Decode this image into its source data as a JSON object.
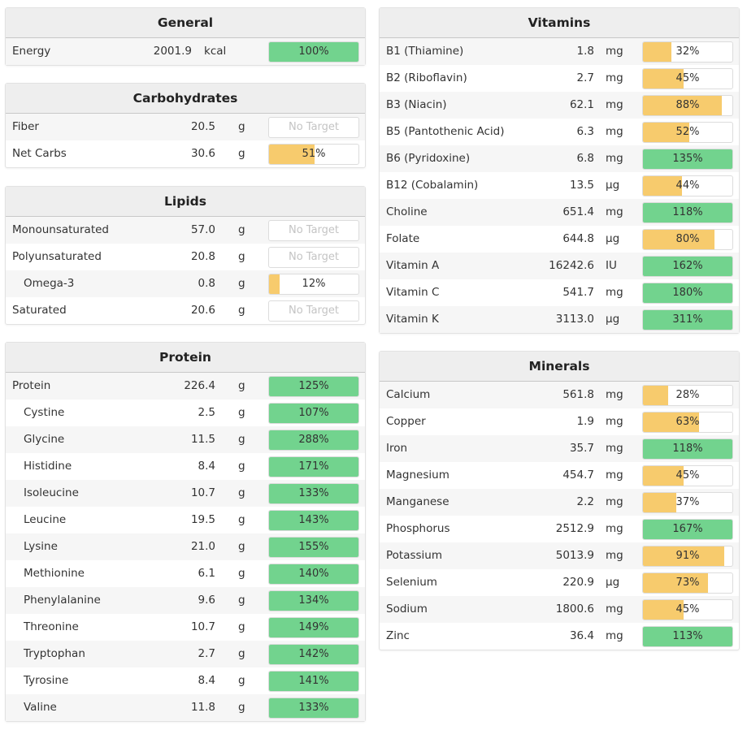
{
  "colors": {
    "met": "#72d38e",
    "partial": "#f7cb6d"
  },
  "panels": [
    {
      "id": "general",
      "title": "General",
      "side": "left",
      "top": 9,
      "rows": [
        {
          "name": "Energy",
          "value": "2001.9",
          "unit": "kcal",
          "pct": 100,
          "label": "100%"
        }
      ]
    },
    {
      "id": "carbohydrates",
      "title": "Carbohydrates",
      "side": "left",
      "top": 102,
      "rows": [
        {
          "name": "Fiber",
          "value": "20.5",
          "unit": "g",
          "pct": null,
          "label": "No Target"
        },
        {
          "name": "Net Carbs",
          "value": "30.6",
          "unit": "g",
          "pct": 51,
          "label": "51%"
        }
      ]
    },
    {
      "id": "lipids",
      "title": "Lipids",
      "side": "left",
      "top": 229,
      "rows": [
        {
          "name": "Monounsaturated",
          "value": "57.0",
          "unit": "g",
          "pct": null,
          "label": "No Target"
        },
        {
          "name": "Polyunsaturated",
          "value": "20.8",
          "unit": "g",
          "pct": null,
          "label": "No Target"
        },
        {
          "name": "Omega-3",
          "value": "0.8",
          "unit": "g",
          "pct": 12,
          "label": "12%",
          "sub": true
        },
        {
          "name": "Saturated",
          "value": "20.6",
          "unit": "g",
          "pct": null,
          "label": "No Target"
        }
      ]
    },
    {
      "id": "protein",
      "title": "Protein",
      "side": "left",
      "top": 421,
      "rows": [
        {
          "name": "Protein",
          "value": "226.4",
          "unit": "g",
          "pct": 125,
          "label": "125%"
        },
        {
          "name": "Cystine",
          "value": "2.5",
          "unit": "g",
          "pct": 107,
          "label": "107%",
          "sub": true
        },
        {
          "name": "Glycine",
          "value": "11.5",
          "unit": "g",
          "pct": 288,
          "label": "288%",
          "sub": true
        },
        {
          "name": "Histidine",
          "value": "8.4",
          "unit": "g",
          "pct": 171,
          "label": "171%",
          "sub": true
        },
        {
          "name": "Isoleucine",
          "value": "10.7",
          "unit": "g",
          "pct": 133,
          "label": "133%",
          "sub": true
        },
        {
          "name": "Leucine",
          "value": "19.5",
          "unit": "g",
          "pct": 143,
          "label": "143%",
          "sub": true
        },
        {
          "name": "Lysine",
          "value": "21.0",
          "unit": "g",
          "pct": 155,
          "label": "155%",
          "sub": true
        },
        {
          "name": "Methionine",
          "value": "6.1",
          "unit": "g",
          "pct": 140,
          "label": "140%",
          "sub": true
        },
        {
          "name": "Phenylalanine",
          "value": "9.6",
          "unit": "g",
          "pct": 134,
          "label": "134%",
          "sub": true
        },
        {
          "name": "Threonine",
          "value": "10.7",
          "unit": "g",
          "pct": 149,
          "label": "149%",
          "sub": true
        },
        {
          "name": "Tryptophan",
          "value": "2.7",
          "unit": "g",
          "pct": 142,
          "label": "142%",
          "sub": true
        },
        {
          "name": "Tyrosine",
          "value": "8.4",
          "unit": "g",
          "pct": 141,
          "label": "141%",
          "sub": true
        },
        {
          "name": "Valine",
          "value": "11.8",
          "unit": "g",
          "pct": 133,
          "label": "133%",
          "sub": true
        }
      ]
    },
    {
      "id": "vitamins",
      "title": "Vitamins",
      "side": "right",
      "top": 9,
      "rows": [
        {
          "name": "B1 (Thiamine)",
          "value": "1.8",
          "unit": "mg",
          "pct": 32,
          "label": "32%"
        },
        {
          "name": "B2 (Riboflavin)",
          "value": "2.7",
          "unit": "mg",
          "pct": 45,
          "label": "45%"
        },
        {
          "name": "B3 (Niacin)",
          "value": "62.1",
          "unit": "mg",
          "pct": 88,
          "label": "88%"
        },
        {
          "name": "B5 (Pantothenic Acid)",
          "value": "6.3",
          "unit": "mg",
          "pct": 52,
          "label": "52%"
        },
        {
          "name": "B6 (Pyridoxine)",
          "value": "6.8",
          "unit": "mg",
          "pct": 135,
          "label": "135%"
        },
        {
          "name": "B12 (Cobalamin)",
          "value": "13.5",
          "unit": "µg",
          "pct": 44,
          "label": "44%"
        },
        {
          "name": "Choline",
          "value": "651.4",
          "unit": "mg",
          "pct": 118,
          "label": "118%"
        },
        {
          "name": "Folate",
          "value": "644.8",
          "unit": "µg",
          "pct": 80,
          "label": "80%"
        },
        {
          "name": "Vitamin A",
          "value": "16242.6",
          "unit": "IU",
          "pct": 162,
          "label": "162%"
        },
        {
          "name": "Vitamin C",
          "value": "541.7",
          "unit": "mg",
          "pct": 180,
          "label": "180%"
        },
        {
          "name": "Vitamin K",
          "value": "3113.0",
          "unit": "µg",
          "pct": 311,
          "label": "311%"
        }
      ]
    },
    {
      "id": "minerals",
      "title": "Minerals",
      "side": "right",
      "top": 432,
      "rows": [
        {
          "name": "Calcium",
          "value": "561.8",
          "unit": "mg",
          "pct": 28,
          "label": "28%"
        },
        {
          "name": "Copper",
          "value": "1.9",
          "unit": "mg",
          "pct": 63,
          "label": "63%"
        },
        {
          "name": "Iron",
          "value": "35.7",
          "unit": "mg",
          "pct": 118,
          "label": "118%"
        },
        {
          "name": "Magnesium",
          "value": "454.7",
          "unit": "mg",
          "pct": 45,
          "label": "45%"
        },
        {
          "name": "Manganese",
          "value": "2.2",
          "unit": "mg",
          "pct": 37,
          "label": "37%"
        },
        {
          "name": "Phosphorus",
          "value": "2512.9",
          "unit": "mg",
          "pct": 167,
          "label": "167%"
        },
        {
          "name": "Potassium",
          "value": "5013.9",
          "unit": "mg",
          "pct": 91,
          "label": "91%"
        },
        {
          "name": "Selenium",
          "value": "220.9",
          "unit": "µg",
          "pct": 73,
          "label": "73%"
        },
        {
          "name": "Sodium",
          "value": "1800.6",
          "unit": "mg",
          "pct": 45,
          "label": "45%"
        },
        {
          "name": "Zinc",
          "value": "36.4",
          "unit": "mg",
          "pct": 113,
          "label": "113%"
        }
      ]
    }
  ]
}
